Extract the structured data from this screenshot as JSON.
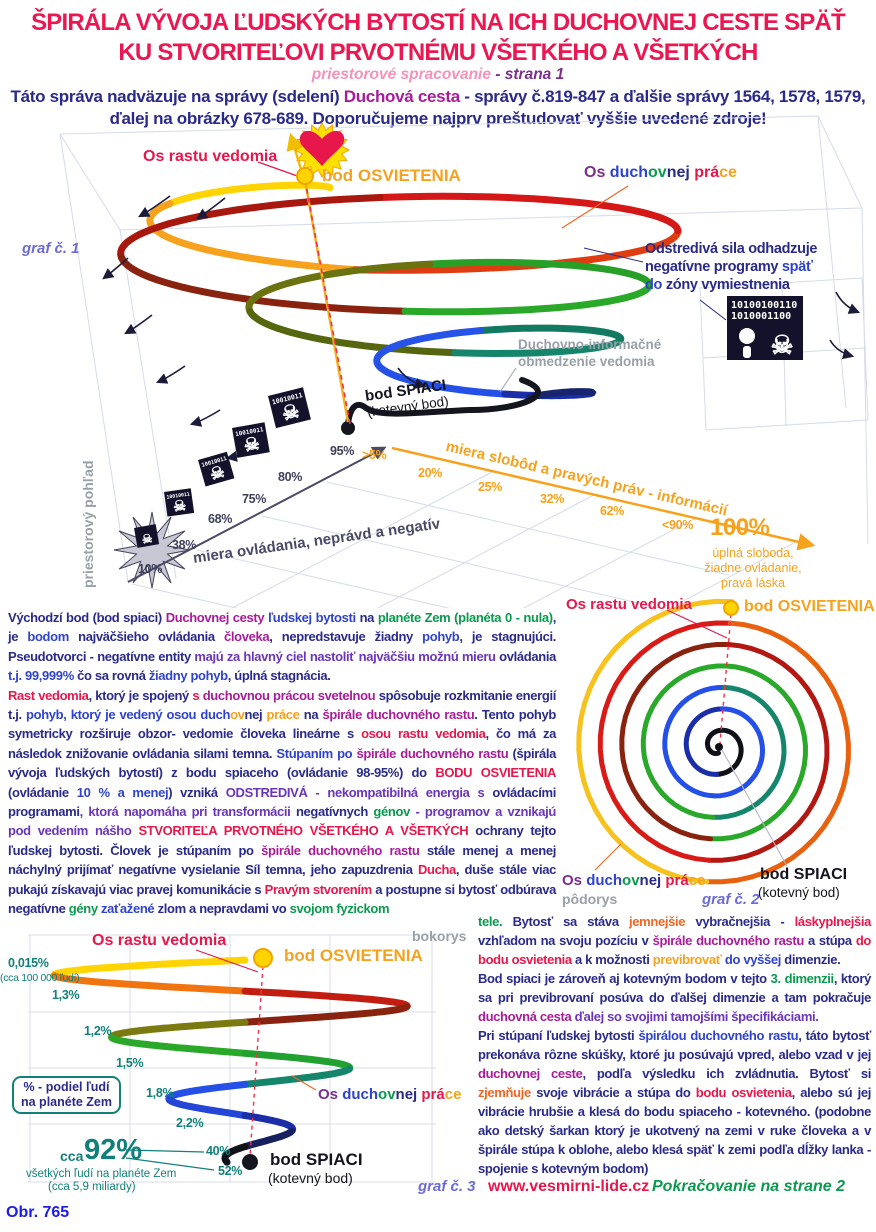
{
  "palette": {
    "title_red": "#ec1651",
    "navy": "#2a2a8a",
    "blue": "#2f43cc",
    "violet": "#6a35b8",
    "magenta": "#a81c98",
    "red": "#e8174b",
    "green": "#0a9a4e",
    "teal": "#12807a",
    "orange": "#f6a21d",
    "gray": "#9aa0a8",
    "black": "#14141e"
  },
  "header": {
    "title1": "ŠPIRÁLA VÝVOJA ĽUDSKÝCH BYTOSTÍ NA ICH DUCHOVNEJ CESTE SPÄŤ",
    "title2": "KU STVORITEĽOVI PRVOTNÉMU VŠETKÉHO A VŠETKÝCH",
    "subtitle_main": "priestorové spracovanie",
    "subtitle_page": " - strana 1",
    "intro": [
      {
        "t": "Táto správa nadväzuje na správy (sdelení) ",
        "c": "#2a2a8a"
      },
      {
        "t": "Duchová cesta",
        "c": "#a81c98"
      },
      {
        "t": " - správy č.819-847 a ďalšie správy 1564, 1578, 1579,\nďalej na obrázky 678-689. Doporučujeme najprv preštudovať vyššie uvedené zdroje!",
        "c": "#2a2a8a"
      }
    ]
  },
  "graf1": {
    "caption": "graf č. 1",
    "view": "priestorový pohľad",
    "os_rastu": "Os rastu vedomia",
    "bod_osvietenia": "bod OSVIETENIA",
    "os_prace": [
      {
        "t": "Os ",
        "c": "#7c2f8e"
      },
      {
        "t": "duch",
        "c": "#2f43cc"
      },
      {
        "t": "ov",
        "c": "#0a9a4e"
      },
      {
        "t": "nej ",
        "c": "#2a2a8a"
      },
      {
        "t": "prá",
        "c": "#e8174b"
      },
      {
        "t": "ce",
        "c": "#f6a21d"
      }
    ],
    "note": [
      {
        "t": "Odstredivá sila odhadzuje\nnegatívne programy ",
        "c": "#2a2a8a"
      },
      {
        "t": "späť\n",
        "c": "#2f43cc"
      },
      {
        "t": "do ",
        "c": "#2f43cc"
      },
      {
        "t": "zóny vymiestnenia",
        "c": "#2a2a8a"
      }
    ],
    "binary1": "10100100110",
    "binary2": "1010001100",
    "obmedzenie": "Duchovno-informačné\nobmedzenie vedomia",
    "bod_spiaci": "bod SPIACI",
    "kotevny": "(kotevný bod)",
    "axis_control_label": "miera ovládania, neprávd a negatív",
    "axis_control_ticks": [
      "10%",
      "38%",
      "68%",
      "75%",
      "80%",
      "95%"
    ],
    "axis_freedom_label": "miera slobôd a  pravých práv - informácií",
    "axis_freedom_ticks": [
      ">5%",
      "20%",
      "25%",
      "32%",
      "62%",
      "<90%"
    ],
    "freedom_end": "100%",
    "freedom_end_sub": "úplná sloboda,\nžiadne ovládanie,\npravá láska",
    "spiral_colors": [
      "#ffd400",
      "#f6a21d",
      "#e03c12",
      "#d41717",
      "#a8180f",
      "#8a2210",
      "#2aa82a",
      "#28a028",
      "#6b7210",
      "#55660e",
      "#15866c",
      "#127a60",
      "#2853e8",
      "#2450e8",
      "#1b2ea8",
      "#18246e"
    ]
  },
  "graf2": {
    "caption": "graf č. 2",
    "view": "pôdorys",
    "os_rastu": "Os rastu vedomia",
    "bod_osvietenia": "bod OSVIETENIA",
    "os_prace": [
      {
        "t": "Os ",
        "c": "#7c2f8e"
      },
      {
        "t": "duch",
        "c": "#2f43cc"
      },
      {
        "t": "ov",
        "c": "#0a9a4e"
      },
      {
        "t": "nej ",
        "c": "#2a2a8a"
      },
      {
        "t": "prá",
        "c": "#e8174b"
      },
      {
        "t": "ce",
        "c": "#f6a21d"
      }
    ],
    "bod_spiaci": "bod SPIACI",
    "kotevny": "(kotevný bod)",
    "spiral_colors": [
      "#101018",
      "#101018",
      "#1b2ea8",
      "#2450e8",
      "#2450e8",
      "#15866c",
      "#2aa82a",
      "#2aa82a",
      "#8a2210",
      "#b31712",
      "#d81b17",
      "#e8610f",
      "#f6c21d"
    ]
  },
  "graf3": {
    "caption": "graf č. 3",
    "view": "bokorys",
    "os_rastu": "Os rastu vedomia",
    "bod_osvietenia": "bod OSVIETENIA",
    "os_prace": [
      {
        "t": "Os ",
        "c": "#7c2f8e"
      },
      {
        "t": "duch",
        "c": "#2f43cc"
      },
      {
        "t": "ov",
        "c": "#0a9a4e"
      },
      {
        "t": "nej ",
        "c": "#2a2a8a"
      },
      {
        "t": "prá",
        "c": "#e8174b"
      },
      {
        "t": "ce",
        "c": "#f6a21d"
      }
    ],
    "bod_spiaci": "bod SPIACI",
    "kotevny": "(kotevný bod)",
    "ticks": [
      "0,015%",
      "1,3%",
      "1,2%",
      "1,5%",
      "1,8%",
      "2,2%",
      "40%",
      "52%"
    ],
    "tick_sub": "(cca 100 000 ľudí)",
    "legend": "% - podiel ľudí\nna planéte Zem",
    "total_prefix": "cca",
    "total_value": "92%",
    "total_sub1": "všetkých ľudí na planéte Zem",
    "total_sub2": "(cca 5,9 miliardy)",
    "spiral_colors": [
      "#ffd400",
      "#f0740f",
      "#c21d10",
      "#8a2210",
      "#7a7a10",
      "#2aa82a",
      "#22a030",
      "#15866c",
      "#2450e8",
      "#2346d6",
      "#1b2ea8",
      "#16205e",
      "#101018"
    ]
  },
  "left_paragraph": [
    {
      "t": "Východzí bod (bod spiaci) ",
      "c": "#2a2a8a"
    },
    {
      "t": "Duchovnej cesty ",
      "c": "#a81c98"
    },
    {
      "t": "ľudskej bytosti ",
      "c": "#2f43cc"
    },
    {
      "t": "na ",
      "c": "#2a2a8a"
    },
    {
      "t": "planéte Zem (planéta 0 - nula)",
      "c": "#0a9a4e"
    },
    {
      "t": ", je ",
      "c": "#2a2a8a"
    },
    {
      "t": "bodom ",
      "c": "#2f43cc"
    },
    {
      "t": "najväčšieho ovládania ",
      "c": "#2a2a8a"
    },
    {
      "t": "človeka",
      "c": "#a81c98"
    },
    {
      "t": ", nepredstavuje žiadny ",
      "c": "#2a2a8a"
    },
    {
      "t": "pohyb",
      "c": "#2f43cc"
    },
    {
      "t": ", je stagnujúci. Pseudotvorci - negatívne entity ",
      "c": "#2a2a8a"
    },
    {
      "t": "majú za hlavný ciel nastoliť najväčšiu možnú mieru ",
      "c": "#6a35b8"
    },
    {
      "t": "ovládania ",
      "c": "#2a2a8a"
    },
    {
      "t": "t.j. 99,999% ",
      "c": "#2f43cc"
    },
    {
      "t": "čo sa rovná ",
      "c": "#2a2a8a"
    },
    {
      "t": "žiadny pohyb",
      "c": "#2f43cc"
    },
    {
      "t": ",  úplná stagnácia.\n",
      "c": "#2a2a8a"
    },
    {
      "t": "Rast vedomia",
      "c": "#e8174b"
    },
    {
      "t": ", ktorý je spojený ",
      "c": "#2a2a8a"
    },
    {
      "t": "s ",
      "c": "#e8174b"
    },
    {
      "t": "duchovnou prácou svetelnou ",
      "c": "#a81c98"
    },
    {
      "t": "spôsobuje rozkmitanie energií t.j. ",
      "c": "#2a2a8a"
    },
    {
      "t": "pohyb, ktorý je vedený ",
      "c": "#2f43cc"
    },
    {
      "t": "osou ",
      "c": "#2f43cc"
    },
    {
      "t": "duch",
      "c": "#2f43cc"
    },
    {
      "t": "ov",
      "c": "#f6a21d"
    },
    {
      "t": "nej ",
      "c": "#2a2a8a"
    },
    {
      "t": "práce ",
      "c": "#f6a21d"
    },
    {
      "t": "na ",
      "c": "#2a2a8a"
    },
    {
      "t": "špirále duchovného rastu",
      "c": "#a81c98"
    },
    {
      "t": ". Tento pohyb symetricky rozširuje obzor- vedomie človeka lineárne s ",
      "c": "#2a2a8a"
    },
    {
      "t": "osou rastu vedomia",
      "c": "#e8174b"
    },
    {
      "t": ", čo má za následok znižovanie ovládania silami temna. ",
      "c": "#2a2a8a"
    },
    {
      "t": "Stúpaním po ",
      "c": "#2f43cc"
    },
    {
      "t": "špirále duchovného rastu ",
      "c": "#a81c98"
    },
    {
      "t": "(špirála vývoja ľudských bytostí)  z bodu spiaceho (ovládanie 98-95%)   do ",
      "c": "#2a2a8a"
    },
    {
      "t": "BODU OSVIETENIA ",
      "c": "#e8174b"
    },
    {
      "t": "(ovládanie ",
      "c": "#2a2a8a"
    },
    {
      "t": "10 % a menej",
      "c": "#2f43cc"
    },
    {
      "t": ") vzniká ",
      "c": "#2a2a8a"
    },
    {
      "t": "ODSTREDIVÁ - nekompatibilná energia s ",
      "c": "#6a35b8"
    },
    {
      "t": "ovládacími programami",
      "c": "#2a2a8a"
    },
    {
      "t": ", ktorá napomáha pri transformácii ",
      "c": "#6a35b8"
    },
    {
      "t": "negatívnych ",
      "c": "#2a2a8a"
    },
    {
      "t": "génov ",
      "c": "#0a9a4e"
    },
    {
      "t": "- programov a vznikajú pod vedením nášho ",
      "c": "#6a35b8"
    },
    {
      "t": "STVORITEĽA PRVOTNÉHO VŠETKÉHO A VŠETKÝCH ",
      "c": "#e8174b"
    },
    {
      "t": "ochrany tejto ľudskej bytosti. Človek je stúpaním po ",
      "c": "#2a2a8a"
    },
    {
      "t": "špirále duchovného rastu ",
      "c": "#a81c98"
    },
    {
      "t": "stále menej a menej náchylný prijímať negatívne vysielanie Síl temna, jeho zapuzdrenia ",
      "c": "#2a2a8a"
    },
    {
      "t": "Ducha",
      "c": "#e8174b"
    },
    {
      "t": ", duše stále viac pukajú  získavajú viac pravej komunikácie s ",
      "c": "#2a2a8a"
    },
    {
      "t": "Pravým stvorením ",
      "c": "#e8174b"
    },
    {
      "t": "a postupne si bytosť odbúrava negatívne ",
      "c": "#2a2a8a"
    },
    {
      "t": "gény ",
      "c": "#0a9a4e"
    },
    {
      "t": "zaťažené ",
      "c": "#2f43cc"
    },
    {
      "t": "zlom a nepravdami vo ",
      "c": "#2a2a8a"
    },
    {
      "t": "svojom fyzickom",
      "c": "#0a9a4e"
    }
  ],
  "right_paragraph": [
    {
      "t": "tele.",
      "c": "#0a9a4e"
    },
    {
      "t": "   Bytosť sa stáva ",
      "c": "#2a2a8a"
    },
    {
      "t": "jemnejšie ",
      "c": "#f26522"
    },
    {
      "t": "vybračnejšia - ",
      "c": "#2a2a8a"
    },
    {
      "t": "láskyplnejšia ",
      "c": "#e8174b"
    },
    {
      "t": "vzhľadom na svoju pozíciu v ",
      "c": "#2a2a8a"
    },
    {
      "t": "špirále duchovného rastu ",
      "c": "#a81c98"
    },
    {
      "t": "a stúpa ",
      "c": "#2a2a8a"
    },
    {
      "t": "do bodu osvietenia ",
      "c": "#e8174b"
    },
    {
      "t": "a k možnosti ",
      "c": "#2a2a8a"
    },
    {
      "t": "previbrovať ",
      "c": "#f6a21d"
    },
    {
      "t": "do vyššej ",
      "c": "#2f43cc"
    },
    {
      "t": "dimenzie.\n",
      "c": "#2a2a8a"
    },
    {
      "t": "Bod spiaci je zároveň aj kotevným bodom v tejto ",
      "c": "#2a2a8a"
    },
    {
      "t": "3. dimenzii",
      "c": "#0a9a4e"
    },
    {
      "t": ", ktorý sa pri previbrovaní posúva do ďalšej dimenzie a tam pokračuje ",
      "c": "#2a2a8a"
    },
    {
      "t": "duchovná cesta ",
      "c": "#a81c98"
    },
    {
      "t": "ďalej so svojimi tamojšími špecifikáciami.\n",
      "c": "#6a35b8"
    },
    {
      "t": "Pri stúpaní ľudskej bytosti ",
      "c": "#2a2a8a"
    },
    {
      "t": "špirálou duchovného rastu",
      "c": "#2f43cc"
    },
    {
      "t": ", táto bytosť prekonáva rôzne skúšky, ktoré ju posúvajú vpred, alebo vzad v jej ",
      "c": "#2a2a8a"
    },
    {
      "t": "duchovnej ceste",
      "c": "#a81c98"
    },
    {
      "t": ", podľa výsledku ich zvládnutia. Bytosť si ",
      "c": "#2a2a8a"
    },
    {
      "t": "zjemňuje ",
      "c": "#f26522"
    },
    {
      "t": "svoje vibrácie a stúpa do ",
      "c": "#2a2a8a"
    },
    {
      "t": "bodu osvietenia",
      "c": "#e8174b"
    },
    {
      "t": ", alebo sú jej vibrácie hrubšie a klesá do bodu spiaceho - kotevného. (podobne ako detský šarkan  ktorý je ukotvený na zemi v ruke človeka a v špirále stúpa k oblohe, alebo klesá späť k zemi podľa dĺžky  lanka -  spojenie s kotevným bodom)",
      "c": "#2a2a8a"
    }
  ],
  "footer": {
    "website": "www.vesmirni-lide.cz",
    "continuation": "Pokračovanie na strane 2",
    "figure": "Obr. 765"
  }
}
